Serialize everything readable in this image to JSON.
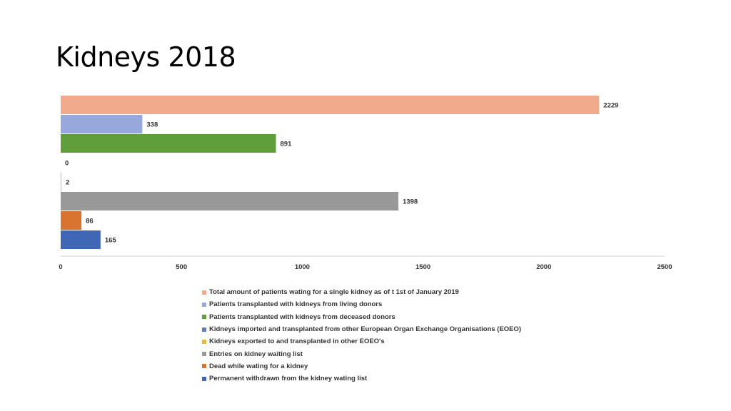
{
  "title": "Kidneys 2018",
  "chart_data": {
    "type": "bar",
    "orientation": "horizontal",
    "title": "",
    "xlabel": "",
    "ylabel": "",
    "xlim": [
      0,
      2500
    ],
    "xticks": [
      "0",
      "500",
      "1000",
      "1500",
      "2000",
      "2500"
    ],
    "grid": false,
    "legend_position": "bottom",
    "series": [
      {
        "name": "Total amount of patients wating for a single kidney as of t 1st of January 2019",
        "value": 2229,
        "color": "#f2aa8c"
      },
      {
        "name": "Patients transplanted with kidneys from living donors",
        "value": 338,
        "color": "#98a8dd"
      },
      {
        "name": "Patients transplanted with kidneys from deceased donors",
        "value": 891,
        "color": "#5f9e3a"
      },
      {
        "name": "Kidneys imported and transplanted from other European Organ Exchange Organisations (EOEO)",
        "value": 0,
        "color": "#5d80b8"
      },
      {
        "name": "Kidneys exported to and transplanted in other EOEO's",
        "value": 2,
        "color": "#e8b93a"
      },
      {
        "name": "Entries on kidney waiting list",
        "value": 1398,
        "color": "#999999"
      },
      {
        "name": "Dead while wating for a kidney",
        "value": 86,
        "color": "#d97330"
      },
      {
        "name": "Permanent withdrawn from the kidney wating list",
        "value": 165,
        "color": "#3f67b5"
      }
    ]
  }
}
